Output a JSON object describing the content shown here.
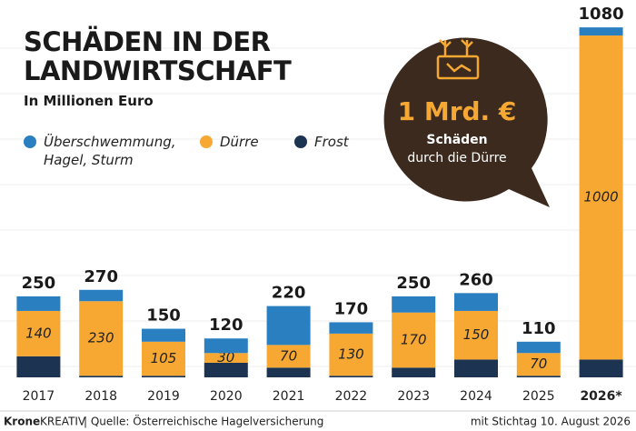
{
  "chart_data": {
    "type": "stacked_bar",
    "title": "SCHÄDEN IN DER LANDWIRTSCHAFT",
    "subtitle": "In Millionen Euro",
    "categories": [
      "2017",
      "2018",
      "2019",
      "2020",
      "2021",
      "2022",
      "2023",
      "2024",
      "2025",
      "2026*"
    ],
    "series": [
      {
        "name": "Überschwemmung, Hagel, Sturm",
        "color": "#2a7fc1",
        "values": [
          45,
          35,
          40,
          45,
          120,
          35,
          50,
          55,
          35,
          25
        ]
      },
      {
        "name": "Dürre",
        "color": "#f6a833",
        "values": [
          140,
          230,
          105,
          30,
          70,
          130,
          170,
          150,
          70,
          1000
        ]
      },
      {
        "name": "Frost",
        "color": "#1d3352",
        "values": [
          65,
          5,
          5,
          45,
          30,
          5,
          30,
          55,
          5,
          55
        ]
      }
    ],
    "totals": [
      250,
      270,
      150,
      120,
      220,
      170,
      250,
      260,
      110,
      1080
    ],
    "ylim": [
      0,
      1100
    ],
    "annotation": {
      "headline": "1 Mrd. €",
      "line1": "Schäden",
      "line2": "durch die Dürre"
    },
    "footer": {
      "brand": "Krone",
      "brand_suffix": "KREATIV",
      "source": "| Quelle: Österreichische Hagelversicherung",
      "date": "mit Stichtag 10. August 2026"
    }
  }
}
